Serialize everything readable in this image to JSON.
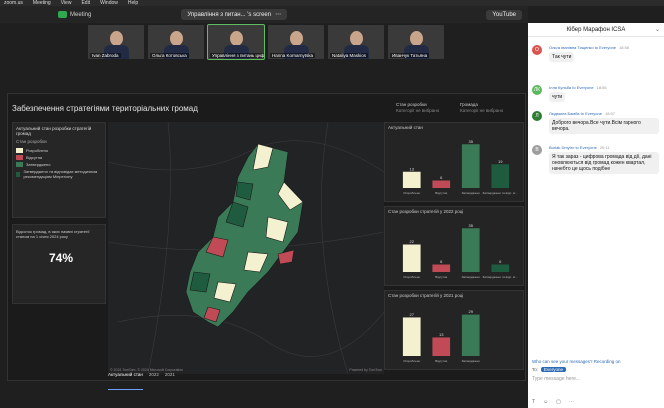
{
  "menubar": {
    "items": [
      "zoom.us",
      "Meeting",
      "View",
      "Edit",
      "Window",
      "Help"
    ]
  },
  "zoombar": {
    "meeting_label": "Meeting",
    "speaker_pill": "Управління з питан... 's screen",
    "youtube_label": "YouTube"
  },
  "participants": [
    {
      "name": "Ivan Zabroda",
      "active": false
    },
    {
      "name": "Ольга Котовська",
      "active": false
    },
    {
      "name": "Управління з питань цифрово...",
      "active": true
    },
    {
      "name": "Hanna Kornarnytska",
      "active": false
    },
    {
      "name": "Nataliya Maskios",
      "active": false
    },
    {
      "name": "Иванчук Татьяна",
      "active": false
    }
  ],
  "dashboard": {
    "title": "Забезпечення стратегіями територіальних громад",
    "header_cols": [
      {
        "label": "Стан розробки",
        "sub": "Категорії не вибрано"
      },
      {
        "label": "Громада",
        "sub": "Категорії не вибрано"
      }
    ],
    "left_panel": {
      "title": "Актуальний стан розробки стратегій громад",
      "legend_title": "Стан розробки",
      "legend": [
        {
          "label": "Розроблено",
          "color": "#f3f1cf"
        },
        {
          "label": "Відсутня",
          "color": "#c04a55"
        },
        {
          "label": "Затверджено",
          "color": "#3a7a57"
        },
        {
          "label": "Затверджено та відповідає методичним рекомендаціям Мінрегіону",
          "color": "#1f5b3f"
        }
      ],
      "pct_label": "Відсоток громад, в яких наявні стратегії станом на 1 січня 2024 року",
      "pct_value": "74%"
    },
    "map": {
      "attribution": "© 2024 TomTom, © 2024 Microsoft Corporation",
      "credit": "Powered by TomTom",
      "tabs": [
        "Актуальний стан",
        "2022",
        "2021"
      ]
    }
  },
  "chart_data": [
    {
      "type": "bar",
      "title": "Актуальний стан",
      "categories": [
        "Розроблено",
        "Відсутня",
        "Затверджено",
        "Затверджено та відп. методичним рекомендаціям"
      ],
      "values": [
        13,
        6,
        35,
        19
      ],
      "colors": [
        "#f3f1cf",
        "#c04a55",
        "#3a7a57",
        "#1f5b3f"
      ],
      "ylim": [
        0,
        40
      ]
    },
    {
      "type": "bar",
      "title": "Стан розробки стратегій у 2022 році",
      "categories": [
        "Розроблено",
        "Відсутня",
        "Затверджено",
        "Затверджено та відп. методичним рекомендаціям"
      ],
      "values": [
        22,
        6,
        35,
        6
      ],
      "colors": [
        "#f3f1cf",
        "#c04a55",
        "#3a7a57",
        "#1f5b3f"
      ],
      "ylim": [
        0,
        40
      ]
    },
    {
      "type": "bar",
      "title": "Стан розробки стратегій у 2021 році",
      "categories": [
        "Розроблено",
        "Відсутня",
        "Затверджено"
      ],
      "values": [
        27,
        13,
        29
      ],
      "colors": [
        "#f3f1cf",
        "#c04a55",
        "#3a7a57"
      ],
      "ylim": [
        0,
        35
      ]
    }
  ],
  "chat": {
    "title": "Кібер Марафон ICSA",
    "messages": [
      {
        "initial": "О",
        "color": "#d9534f",
        "sender": "Ольга Іванівна Тищенко to Everyone",
        "time": "18:56",
        "text": "Так чути"
      },
      {
        "initial": "ЛК",
        "color": "#5cb85c",
        "sender": "Ілля Кульба to Everyone",
        "time": "18:56",
        "text": "чути"
      },
      {
        "initial": "Л",
        "color": "#2e7d32",
        "sender": "Людмила Бамба to Everyone",
        "time": "18:57",
        "text": "Доброго вечора.Все чути.Всім гарного вечора."
      },
      {
        "initial": "B",
        "color": "#9e9e9e",
        "sender": "Burlak Dmytro to Everyone",
        "time": "20:11",
        "text": "Я так зараз - цифрова громада від дії, дані оновлюються від громад кожен квартал, начебто це щось подібне"
      }
    ],
    "who_can_see": "Who can see your messages? Recording on",
    "to_label": "To:",
    "to_target": "Everyone",
    "input_placeholder": "Type message here..."
  }
}
